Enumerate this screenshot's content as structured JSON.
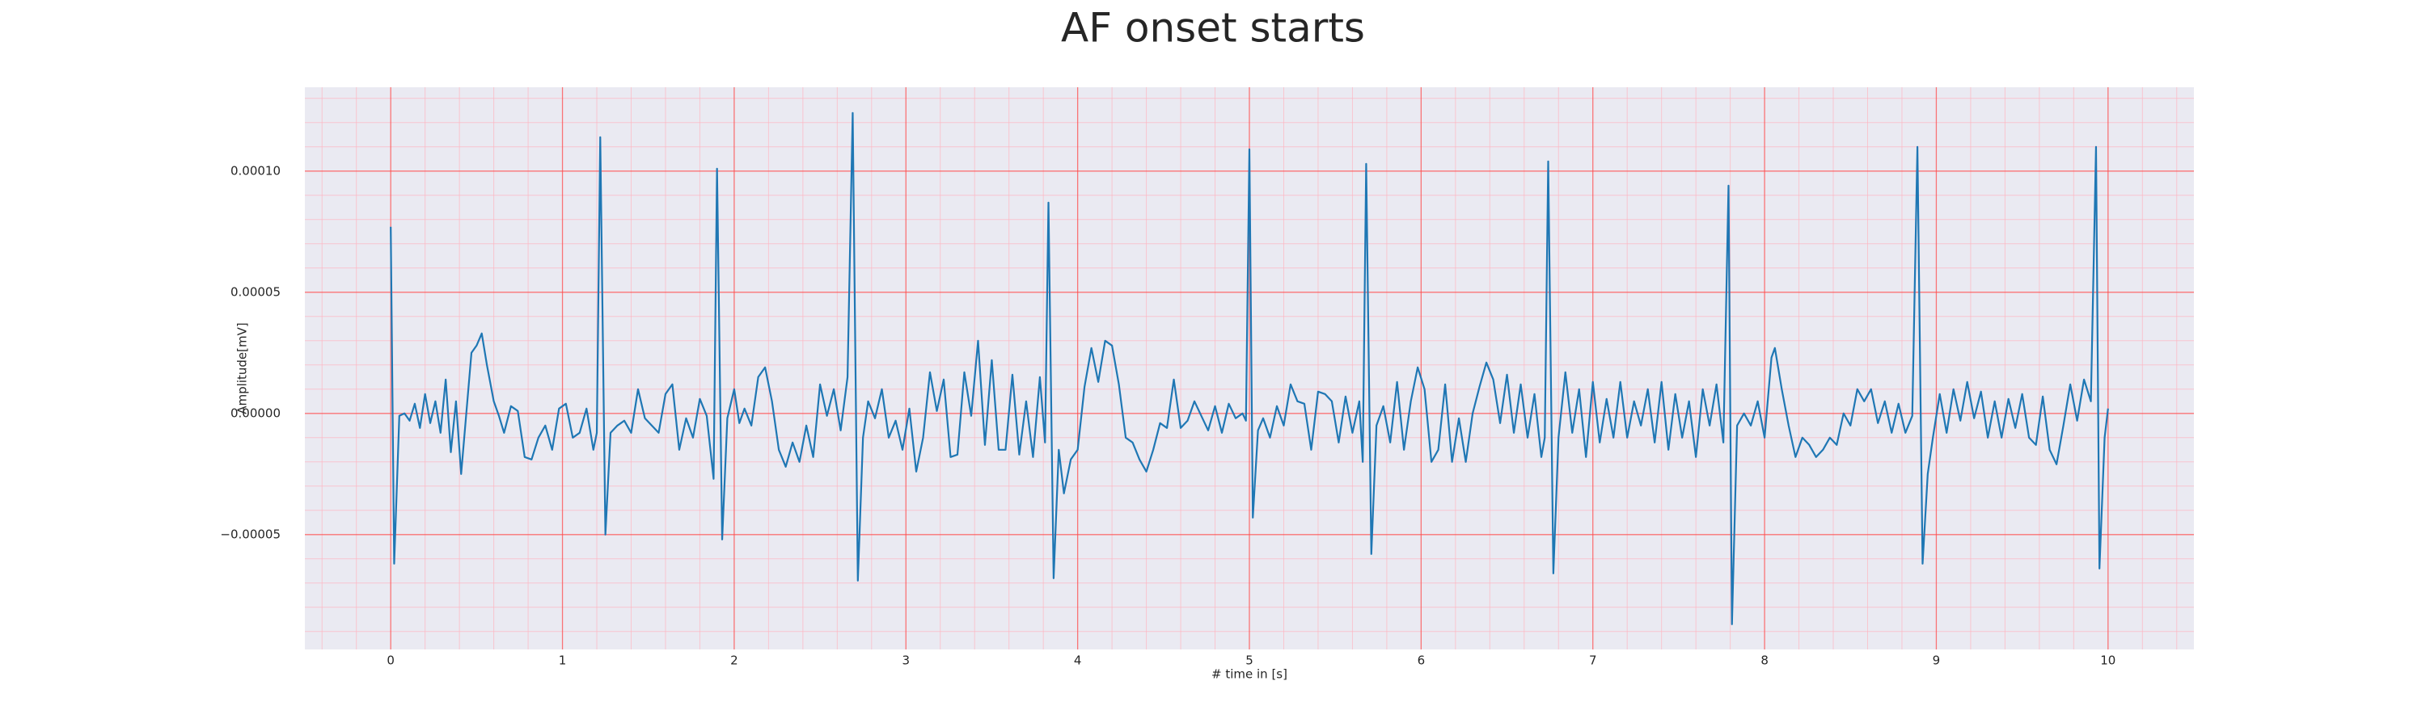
{
  "chart_data": {
    "type": "line",
    "title": "AF onset starts",
    "xlabel": "# time in [s]",
    "ylabel": "Amplitude[mV]",
    "color": "#1f77b4",
    "grid": true,
    "xlim": [
      -0.5,
      10.5
    ],
    "ylim": [
      -9.74e-05,
      0.0001346
    ],
    "xticks": [
      0,
      1,
      2,
      3,
      4,
      5,
      6,
      7,
      8,
      9,
      10
    ],
    "yticks": [
      {
        "value": -5e-05,
        "label": "−0.00005"
      },
      {
        "value": 0,
        "label": "0.00000"
      },
      {
        "value": 5e-05,
        "label": "0.00005"
      },
      {
        "value": 0.0001,
        "label": "0.00010"
      }
    ],
    "xticks_minor": [
      -0.4,
      -0.2,
      0.2,
      0.4,
      0.6,
      0.8,
      1.2,
      1.4,
      1.6,
      1.8,
      2.2,
      2.4,
      2.6,
      2.8,
      3.2,
      3.4,
      3.6,
      3.8,
      4.2,
      4.4,
      4.6,
      4.8,
      5.2,
      5.4,
      5.6,
      5.8,
      6.2,
      6.4,
      6.6,
      6.8,
      7.2,
      7.4,
      7.6,
      7.8,
      8.2,
      8.4,
      8.6,
      8.8,
      9.2,
      9.4,
      9.6,
      9.8,
      10.2,
      10.4
    ],
    "yticks_minor": [
      -9e-05,
      -8e-05,
      -7e-05,
      -6e-05,
      -4e-05,
      -3e-05,
      -2e-05,
      -1e-05,
      1e-05,
      2e-05,
      3e-05,
      4e-05,
      6e-05,
      7e-05,
      8e-05,
      9e-05,
      0.00011,
      0.00012,
      0.00013
    ],
    "x": [
      0,
      0.02,
      0.05,
      0.08,
      0.11,
      0.14,
      0.17,
      0.2,
      0.23,
      0.26,
      0.29,
      0.32,
      0.35,
      0.38,
      0.41,
      0.44,
      0.47,
      0.5,
      0.53,
      0.56,
      0.6,
      0.63,
      0.66,
      0.7,
      0.74,
      0.78,
      0.82,
      0.86,
      0.9,
      0.94,
      0.98,
      1.02,
      1.06,
      1.1,
      1.14,
      1.18,
      1.2,
      1.22,
      1.25,
      1.28,
      1.32,
      1.36,
      1.4,
      1.44,
      1.48,
      1.52,
      1.56,
      1.6,
      1.64,
      1.68,
      1.72,
      1.76,
      1.8,
      1.84,
      1.88,
      1.9,
      1.93,
      1.96,
      2.0,
      2.03,
      2.06,
      2.1,
      2.14,
      2.18,
      2.22,
      2.26,
      2.3,
      2.34,
      2.38,
      2.42,
      2.46,
      2.5,
      2.54,
      2.58,
      2.62,
      2.66,
      2.69,
      2.72,
      2.75,
      2.78,
      2.82,
      2.86,
      2.9,
      2.94,
      2.98,
      3.02,
      3.06,
      3.1,
      3.14,
      3.18,
      3.22,
      3.26,
      3.3,
      3.34,
      3.38,
      3.42,
      3.46,
      3.5,
      3.54,
      3.58,
      3.62,
      3.66,
      3.7,
      3.74,
      3.78,
      3.81,
      3.83,
      3.86,
      3.89,
      3.92,
      3.96,
      4.0,
      4.04,
      4.08,
      4.12,
      4.16,
      4.2,
      4.24,
      4.28,
      4.32,
      4.36,
      4.4,
      4.44,
      4.48,
      4.52,
      4.56,
      4.6,
      4.64,
      4.68,
      4.72,
      4.76,
      4.8,
      4.84,
      4.88,
      4.92,
      4.96,
      4.98,
      5.0,
      5.02,
      5.05,
      5.08,
      5.12,
      5.16,
      5.2,
      5.24,
      5.28,
      5.32,
      5.36,
      5.4,
      5.44,
      5.48,
      5.52,
      5.56,
      5.6,
      5.64,
      5.66,
      5.68,
      5.71,
      5.74,
      5.78,
      5.82,
      5.86,
      5.9,
      5.94,
      5.98,
      6.02,
      6.06,
      6.1,
      6.14,
      6.18,
      6.22,
      6.26,
      6.3,
      6.34,
      6.38,
      6.42,
      6.46,
      6.5,
      6.54,
      6.58,
      6.62,
      6.66,
      6.7,
      6.72,
      6.74,
      6.77,
      6.8,
      6.84,
      6.88,
      6.92,
      6.96,
      7.0,
      7.04,
      7.08,
      7.12,
      7.16,
      7.2,
      7.24,
      7.28,
      7.32,
      7.36,
      7.4,
      7.44,
      7.48,
      7.52,
      7.56,
      7.6,
      7.64,
      7.68,
      7.72,
      7.76,
      7.79,
      7.81,
      7.84,
      7.88,
      7.92,
      7.96,
      8.0,
      8.04,
      8.06,
      8.1,
      8.14,
      8.18,
      8.22,
      8.26,
      8.3,
      8.34,
      8.38,
      8.42,
      8.46,
      8.5,
      8.54,
      8.58,
      8.62,
      8.66,
      8.7,
      8.74,
      8.78,
      8.82,
      8.86,
      8.89,
      8.92,
      8.95,
      8.98,
      9.02,
      9.06,
      9.1,
      9.14,
      9.18,
      9.22,
      9.26,
      9.3,
      9.34,
      9.38,
      9.42,
      9.46,
      9.5,
      9.54,
      9.58,
      9.62,
      9.66,
      9.7,
      9.74,
      9.78,
      9.82,
      9.86,
      9.9,
      9.93,
      9.95,
      9.98,
      10.0
    ],
    "values": [
      7.7e-05,
      -6.2e-05,
      -1e-06,
      0,
      -3e-06,
      4e-06,
      -6e-06,
      8e-06,
      -4e-06,
      5e-06,
      -8e-06,
      1.4e-05,
      -1.6e-05,
      5e-06,
      -2.5e-05,
      0,
      2.5e-05,
      2.8e-05,
      3.3e-05,
      2e-05,
      5e-06,
      -1e-06,
      -8e-06,
      3e-06,
      1e-06,
      -1.8e-05,
      -1.9e-05,
      -1e-05,
      -5e-06,
      -1.5e-05,
      2e-06,
      4e-06,
      -1e-05,
      -8e-06,
      2e-06,
      -1.5e-05,
      -8e-06,
      0.000114,
      -5e-05,
      -8e-06,
      -5e-06,
      -3e-06,
      -8e-06,
      1e-05,
      -2e-06,
      -5e-06,
      -8e-06,
      8e-06,
      1.2e-05,
      -1.5e-05,
      -2e-06,
      -1e-05,
      6e-06,
      -1e-06,
      -2.7e-05,
      0.000101,
      -5.2e-05,
      -2e-06,
      1e-05,
      -4e-06,
      2e-06,
      -5e-06,
      1.5e-05,
      1.9e-05,
      5e-06,
      -1.5e-05,
      -2.2e-05,
      -1.2e-05,
      -2e-05,
      -5e-06,
      -1.8e-05,
      1.2e-05,
      -1e-06,
      1e-05,
      -7e-06,
      1.5e-05,
      0.000124,
      -6.9e-05,
      -1e-05,
      5e-06,
      -2e-06,
      1e-05,
      -1e-05,
      -3e-06,
      -1.5e-05,
      2e-06,
      -2.4e-05,
      -1e-05,
      1.7e-05,
      1e-06,
      1.4e-05,
      -1.8e-05,
      -1.7e-05,
      1.7e-05,
      -1e-06,
      3e-05,
      -1.3e-05,
      2.2e-05,
      -1.5e-05,
      -1.5e-05,
      1.6e-05,
      -1.7e-05,
      5e-06,
      -1.8e-05,
      1.5e-05,
      -1.2e-05,
      8.7e-05,
      -6.8e-05,
      -1.5e-05,
      -3.3e-05,
      -1.9e-05,
      -1.5e-05,
      1.1e-05,
      2.7e-05,
      1.3e-05,
      3e-05,
      2.8e-05,
      1.2e-05,
      -1e-05,
      -1.2e-05,
      -1.9e-05,
      -2.4e-05,
      -1.5e-05,
      -4e-06,
      -6e-06,
      1.4e-05,
      -6e-06,
      -3e-06,
      5e-06,
      -1e-06,
      -7e-06,
      3e-06,
      -8e-06,
      4e-06,
      -2e-06,
      0,
      -3e-06,
      0.000109,
      -4.3e-05,
      -7e-06,
      -2e-06,
      -1e-05,
      3e-06,
      -5e-06,
      1.2e-05,
      5e-06,
      4e-06,
      -1.5e-05,
      9e-06,
      8e-06,
      5e-06,
      -1.2e-05,
      7e-06,
      -8e-06,
      5e-06,
      -2e-05,
      0.000103,
      -5.8e-05,
      -5e-06,
      3e-06,
      -1.2e-05,
      1.3e-05,
      -1.5e-05,
      5e-06,
      1.9e-05,
      1e-05,
      -2e-05,
      -1.5e-05,
      1.2e-05,
      -2e-05,
      -2e-06,
      -2e-05,
      0,
      1.1e-05,
      2.1e-05,
      1.4e-05,
      -4e-06,
      1.6e-05,
      -8e-06,
      1.2e-05,
      -1e-05,
      8e-06,
      -1.8e-05,
      -1e-05,
      0.000104,
      -6.6e-05,
      -1e-05,
      1.7e-05,
      -8e-06,
      1e-05,
      -1.8e-05,
      1.3e-05,
      -1.2e-05,
      6e-06,
      -1e-05,
      1.3e-05,
      -1e-05,
      5e-06,
      -5e-06,
      1e-05,
      -1.2e-05,
      1.3e-05,
      -1.5e-05,
      8e-06,
      -1e-05,
      5e-06,
      -1.8e-05,
      1e-05,
      -5e-06,
      1.2e-05,
      -1.2e-05,
      9.4e-05,
      -8.7e-05,
      -5e-06,
      0,
      -5e-06,
      5e-06,
      -1e-05,
      2.3e-05,
      2.7e-05,
      1e-05,
      -5e-06,
      -1.8e-05,
      -1e-05,
      -1.3e-05,
      -1.8e-05,
      -1.5e-05,
      -1e-05,
      -1.3e-05,
      0,
      -5e-06,
      1e-05,
      5e-06,
      1e-05,
      -4e-06,
      5e-06,
      -8e-06,
      4e-06,
      -8e-06,
      -1e-06,
      0.00011,
      -6.2e-05,
      -2.5e-05,
      -1e-05,
      8e-06,
      -8e-06,
      1e-05,
      -3e-06,
      1.3e-05,
      -2e-06,
      9e-06,
      -1e-05,
      5e-06,
      -1e-05,
      6e-06,
      -6e-06,
      8e-06,
      -1e-05,
      -1.3e-05,
      7e-06,
      -1.5e-05,
      -2.1e-05,
      -5e-06,
      1.2e-05,
      -3e-06,
      1.4e-05,
      5e-06,
      0.00011,
      -6.4e-05,
      -1e-05,
      2e-06
    ]
  }
}
